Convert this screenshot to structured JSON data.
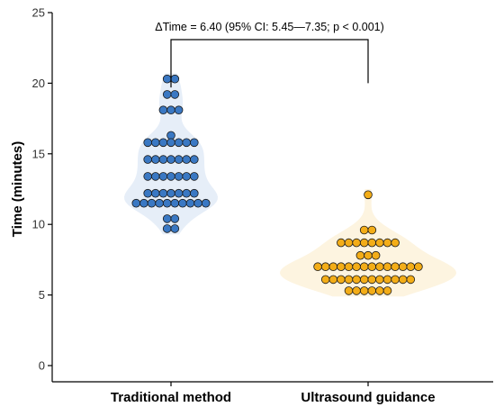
{
  "chart_data": {
    "type": "scatter",
    "subtype": "violin-beeswarm",
    "ylabel": "Time (minutes)",
    "ylim": [
      0,
      25
    ],
    "yticks": [
      0,
      5,
      10,
      15,
      20,
      25
    ],
    "categories": [
      "Traditional method",
      "Ultrasound guidance"
    ],
    "grid": false,
    "legend": "none",
    "series": [
      {
        "category": "Traditional method",
        "color": "#3a78c3",
        "violin_color": "#e6eef8",
        "values": [
          20.3,
          20.3,
          19.2,
          19.2,
          18.1,
          18.1,
          18.1,
          16.3,
          15.8,
          15.8,
          15.8,
          15.8,
          15.8,
          15.8,
          15.8,
          14.6,
          14.6,
          14.6,
          14.6,
          14.6,
          14.6,
          14.6,
          13.4,
          13.4,
          13.4,
          13.4,
          13.4,
          13.4,
          13.4,
          12.2,
          12.2,
          12.2,
          12.2,
          12.2,
          12.2,
          12.2,
          11.5,
          11.5,
          11.5,
          11.5,
          11.5,
          11.5,
          11.5,
          11.5,
          11.5,
          11.5,
          10.4,
          10.4,
          9.7,
          9.7
        ]
      },
      {
        "category": "Ultrasound guidance",
        "color": "#f3ad18",
        "violin_color": "#fdf4e0",
        "values": [
          12.1,
          9.6,
          9.6,
          8.7,
          8.7,
          8.7,
          8.7,
          8.7,
          8.7,
          8.7,
          8.7,
          7.8,
          7.8,
          7.8,
          7.0,
          7.0,
          7.0,
          7.0,
          7.0,
          7.0,
          7.0,
          7.0,
          7.0,
          7.0,
          7.0,
          7.0,
          7.0,
          7.0,
          6.1,
          6.1,
          6.1,
          6.1,
          6.1,
          6.1,
          6.1,
          6.1,
          6.1,
          6.1,
          6.1,
          6.1,
          5.3,
          5.3,
          5.3,
          5.3,
          5.3,
          5.3
        ]
      }
    ],
    "annotation": {
      "text": "ΔTime = 6.40 (95% CI: 5.45—7.35; p < 0.001)",
      "bracket_y": 20
    }
  }
}
